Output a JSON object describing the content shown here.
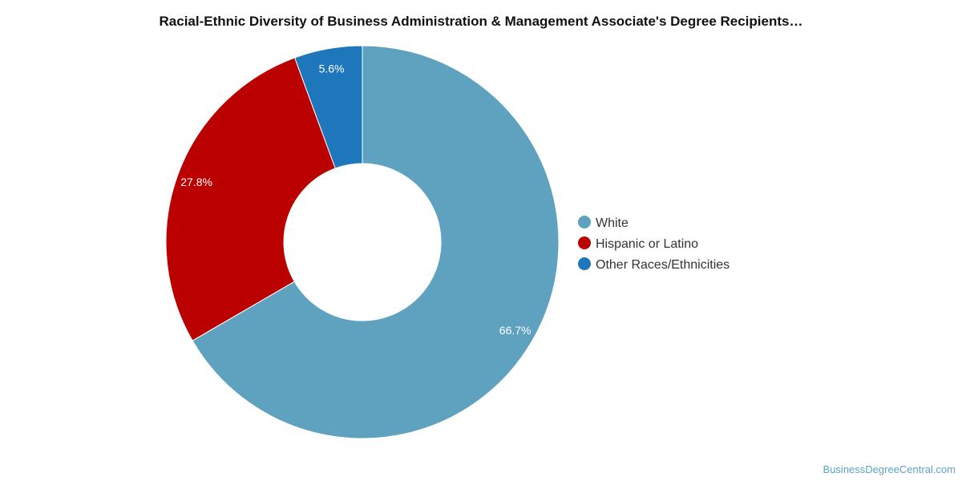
{
  "chart_data": {
    "type": "pie",
    "donut": true,
    "title": "Racial-Ethnic Diversity of Business Administration & Management Associate's Degree Recipients…",
    "slices": [
      {
        "label": "White",
        "value": 66.7,
        "display": "66.7%",
        "color": "#5ea2bf"
      },
      {
        "label": "Hispanic or Latino",
        "value": 27.8,
        "display": "27.8%",
        "color": "#bb0000"
      },
      {
        "label": "Other Races/Ethnicities",
        "value": 5.6,
        "display": "5.6%",
        "color": "#1f77bb"
      }
    ],
    "legend_position": "right"
  },
  "watermark": "BusinessDegreeCentral.com"
}
